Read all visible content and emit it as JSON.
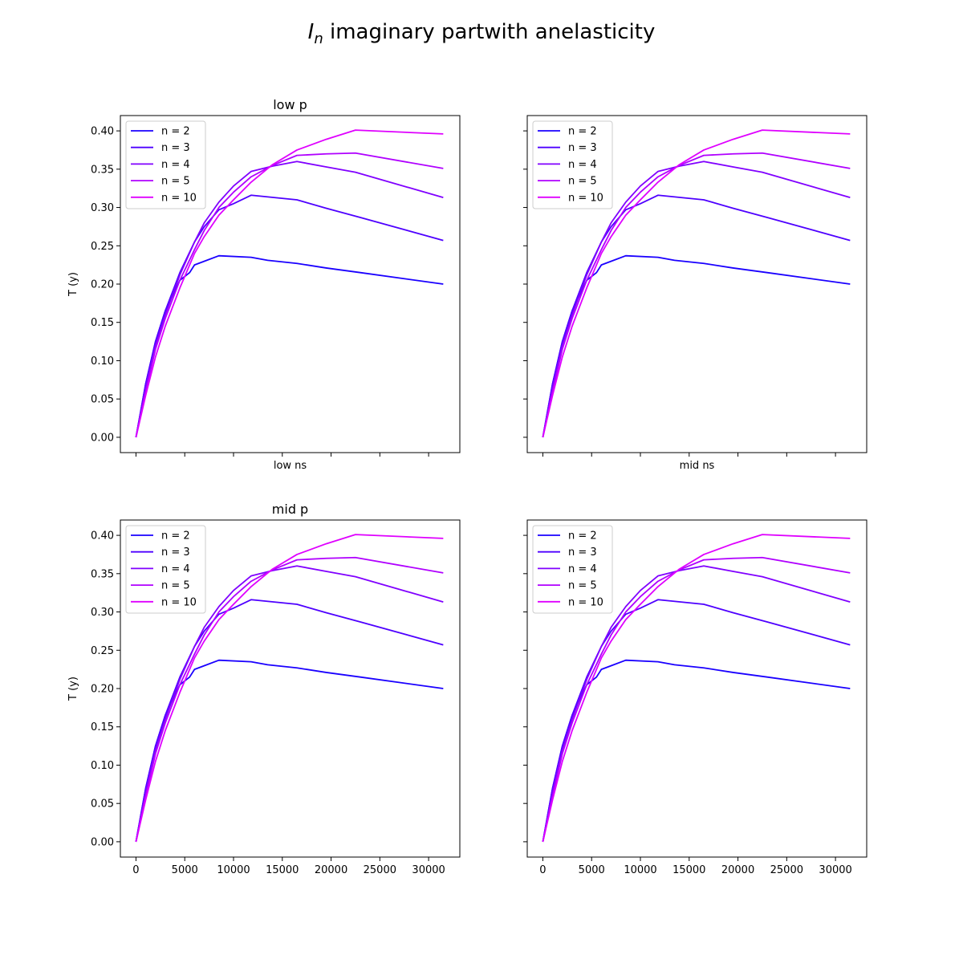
{
  "figure": {
    "title_symbol": "I",
    "title_subscript": "n",
    "title_rest": " imaginary partwith anelasticity"
  },
  "chart_data": [
    {
      "type": "line",
      "title": "low p",
      "xlabel": "low ns",
      "ylabel": "T (y)",
      "x_tick_labels_visible": false,
      "y_tick_labels_visible": true,
      "xlim": [
        -1600,
        33200
      ],
      "ylim": [
        -0.02,
        0.42
      ],
      "grid": false,
      "legend": "upper left"
    },
    {
      "type": "line",
      "title": "",
      "xlabel": "mid ns",
      "ylabel": "",
      "x_tick_labels_visible": false,
      "y_tick_labels_visible": false,
      "xlim": [
        -1600,
        33200
      ],
      "ylim": [
        -0.02,
        0.42
      ],
      "grid": false,
      "legend": "upper left"
    },
    {
      "type": "line",
      "title": "mid p",
      "xlabel": "",
      "ylabel": "T (y)",
      "x_tick_labels_visible": true,
      "y_tick_labels_visible": true,
      "xlim": [
        -1600,
        33200
      ],
      "ylim": [
        -0.02,
        0.42
      ],
      "grid": false,
      "legend": "upper left"
    },
    {
      "type": "line",
      "title": "",
      "xlabel": "",
      "ylabel": "",
      "x_tick_labels_visible": true,
      "y_tick_labels_visible": false,
      "xlim": [
        -1600,
        33200
      ],
      "ylim": [
        -0.02,
        0.42
      ],
      "grid": false,
      "legend": "upper left"
    }
  ],
  "shared": {
    "x_ticks": [
      0,
      5000,
      10000,
      15000,
      20000,
      25000,
      30000
    ],
    "y_ticks": [
      0.0,
      0.05,
      0.1,
      0.15,
      0.2,
      0.25,
      0.3,
      0.35,
      0.4
    ],
    "y_tick_labels": [
      "0.00",
      "0.05",
      "0.10",
      "0.15",
      "0.20",
      "0.25",
      "0.30",
      "0.35",
      "0.40"
    ],
    "series": [
      {
        "name": "n = 2",
        "color": "#1a00ff",
        "x": [
          0,
          1000,
          2000,
          3000,
          4500,
          5500,
          6000,
          8500,
          11800,
          13500,
          16500,
          19500,
          23000,
          31500
        ],
        "y": [
          0.0,
          0.07,
          0.125,
          0.165,
          0.205,
          0.215,
          0.225,
          0.237,
          0.235,
          0.231,
          0.227,
          0.221,
          0.215,
          0.2
        ]
      },
      {
        "name": "n = 3",
        "color": "#4e00ff",
        "x": [
          0,
          1000,
          2000,
          3000,
          4500,
          6000,
          7000,
          8500,
          10000,
          11800,
          16500,
          19500,
          23000,
          31500
        ],
        "y": [
          0.0,
          0.07,
          0.125,
          0.165,
          0.215,
          0.255,
          0.275,
          0.297,
          0.305,
          0.316,
          0.31,
          0.299,
          0.287,
          0.257
        ]
      },
      {
        "name": "n = 4",
        "color": "#8000ff",
        "x": [
          0,
          1000,
          2000,
          3000,
          4500,
          6000,
          7000,
          8500,
          10000,
          11800,
          14000,
          16500,
          19500,
          22500,
          31500
        ],
        "y": [
          0.0,
          0.065,
          0.12,
          0.16,
          0.212,
          0.255,
          0.28,
          0.307,
          0.328,
          0.347,
          0.354,
          0.36,
          0.353,
          0.346,
          0.313
        ]
      },
      {
        "name": "n = 5",
        "color": "#b000ff",
        "x": [
          0,
          1000,
          2000,
          3000,
          4500,
          6000,
          7000,
          8500,
          10000,
          11800,
          14000,
          16500,
          19500,
          22500,
          31500
        ],
        "y": [
          0.0,
          0.06,
          0.115,
          0.155,
          0.205,
          0.245,
          0.27,
          0.3,
          0.32,
          0.34,
          0.355,
          0.368,
          0.37,
          0.371,
          0.351
        ]
      },
      {
        "name": "n = 10",
        "color": "#df00ff",
        "x": [
          0,
          1000,
          2000,
          3000,
          4500,
          6000,
          7000,
          8500,
          10000,
          11800,
          14000,
          16500,
          19500,
          22500,
          31500
        ],
        "y": [
          0.0,
          0.055,
          0.105,
          0.145,
          0.195,
          0.24,
          0.262,
          0.29,
          0.31,
          0.333,
          0.356,
          0.375,
          0.389,
          0.401,
          0.396
        ]
      }
    ]
  }
}
